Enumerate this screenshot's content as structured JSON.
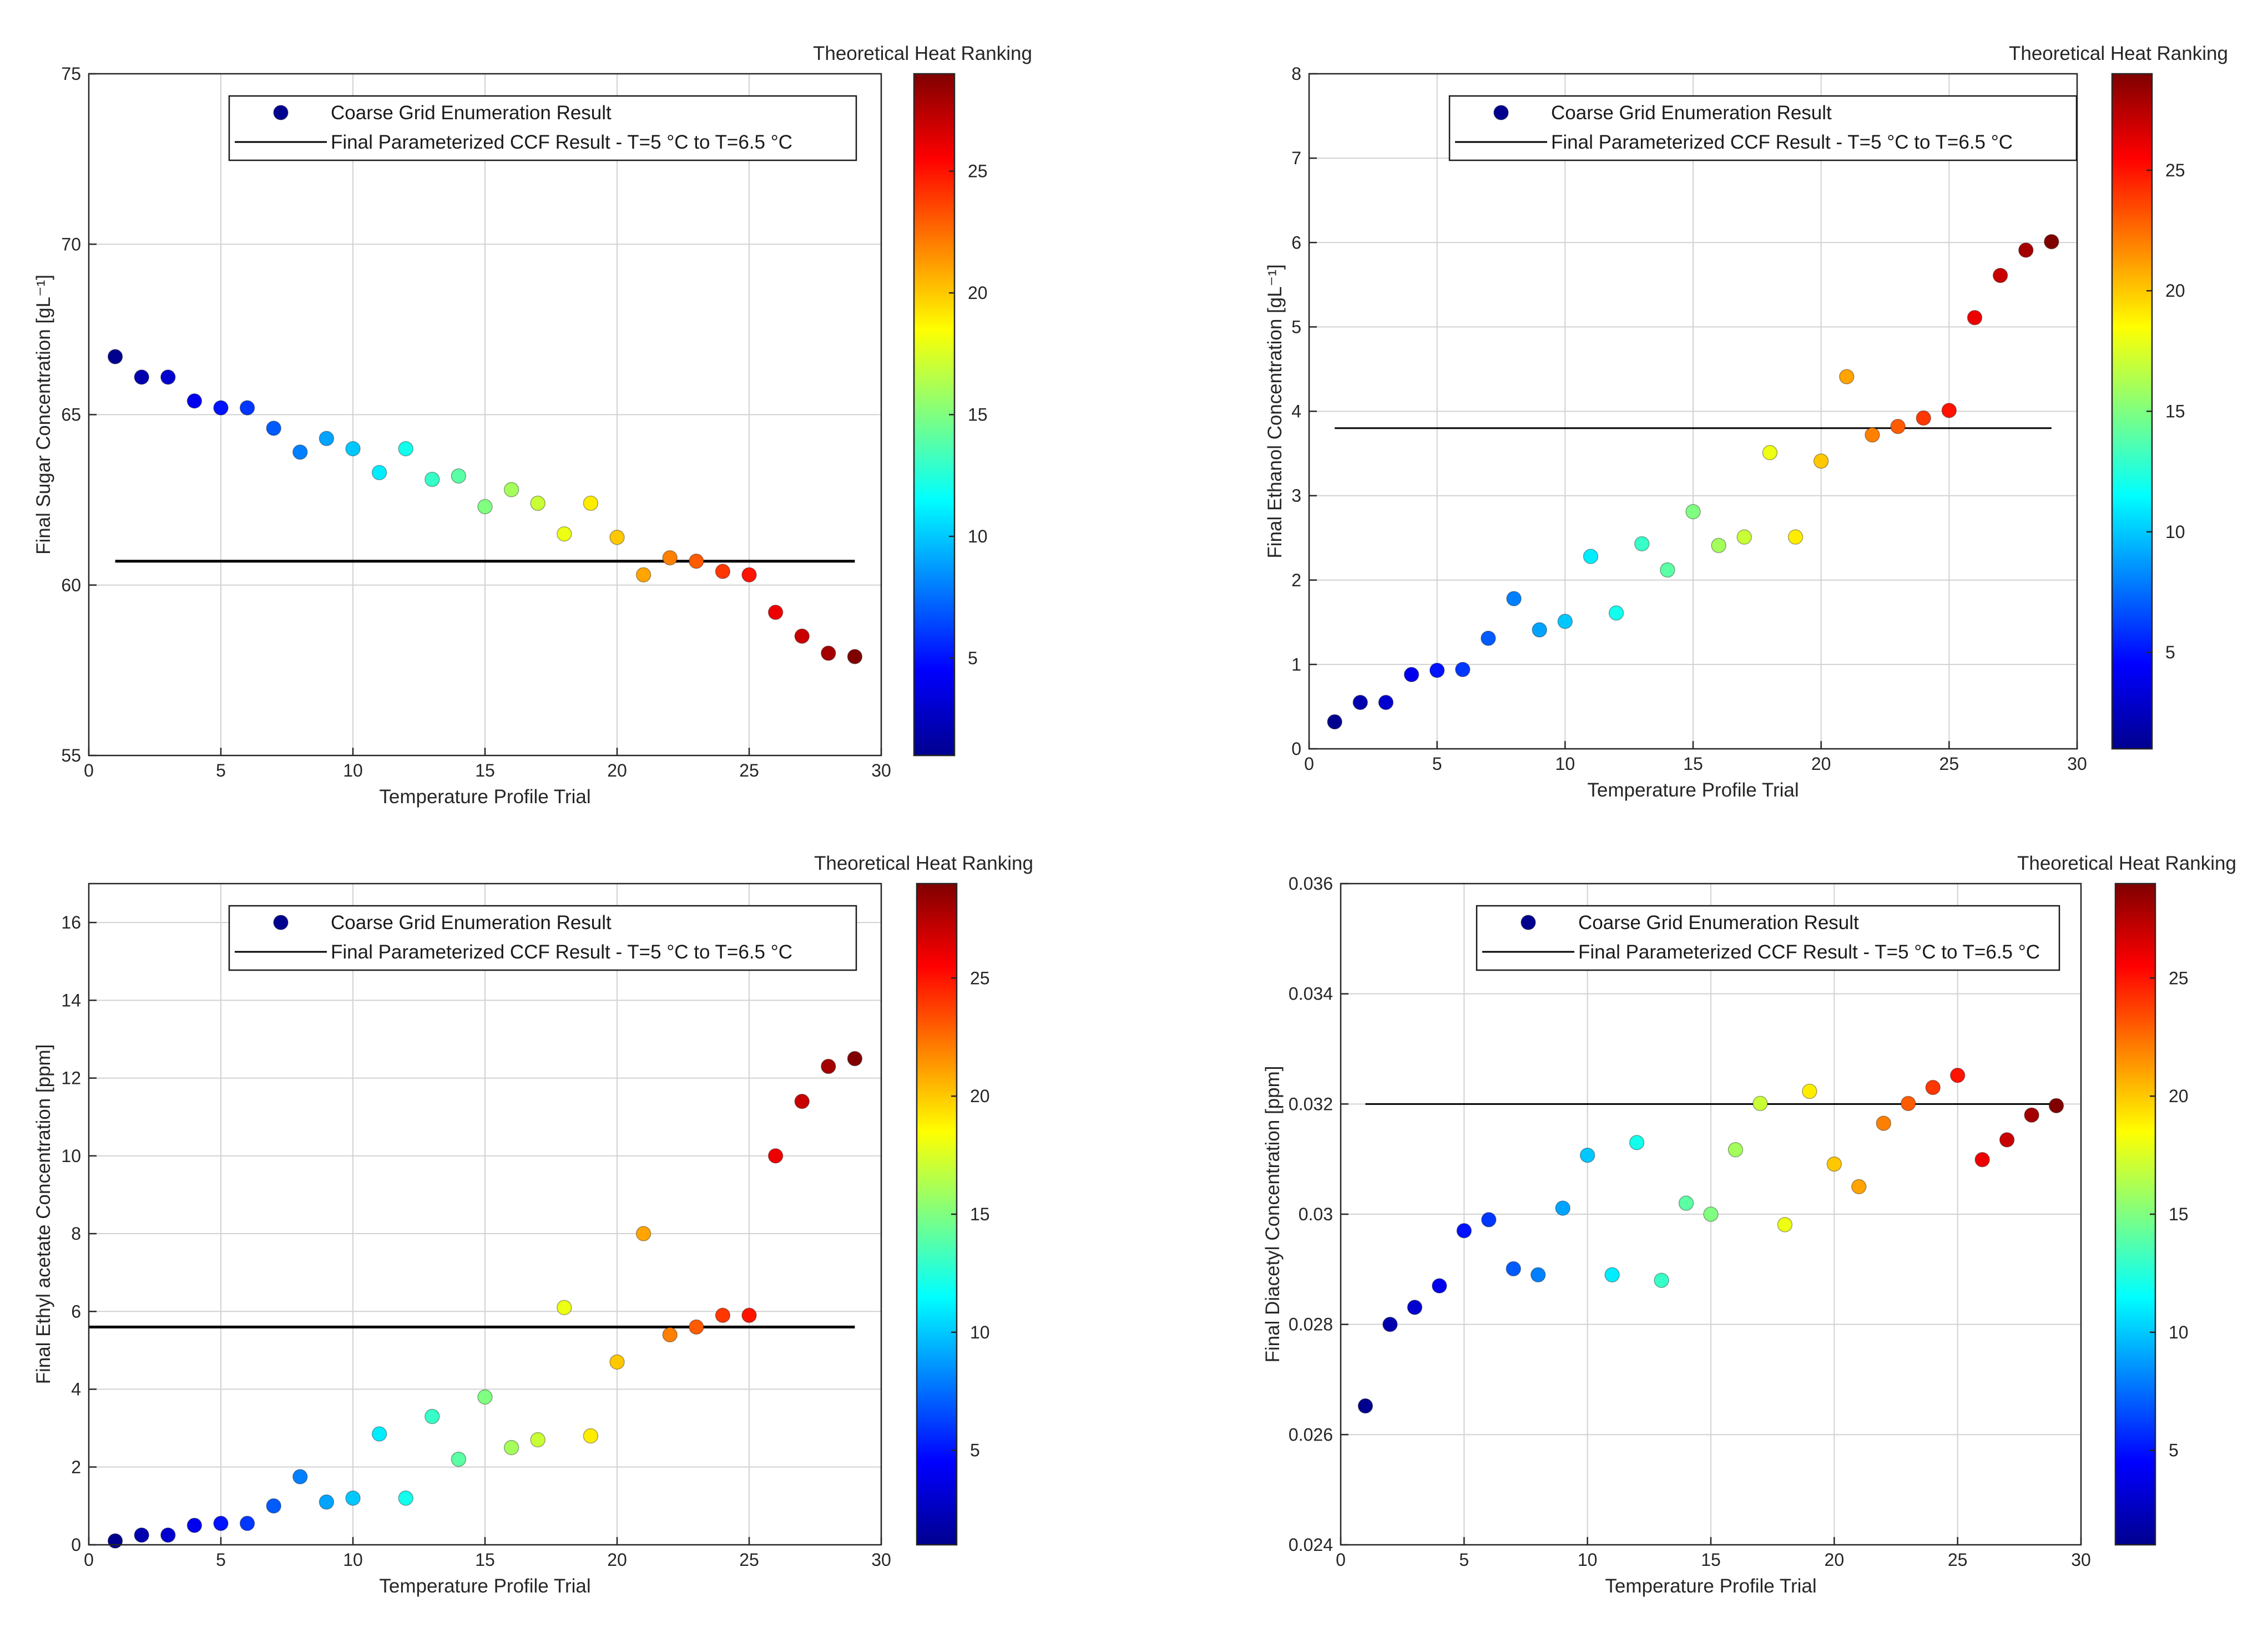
{
  "figure": {
    "colorbar_title": "Theoretical Heat Ranking",
    "colorbar_ticks": [
      5,
      10,
      15,
      20,
      25
    ],
    "colorbar_range": [
      1,
      29
    ],
    "colormap": [
      "#00008f",
      "#0000ff",
      "#00ffff",
      "#ffff00",
      "#ff0000",
      "#800000"
    ]
  },
  "chart_data": [
    {
      "type": "scatter",
      "xlabel": "Temperature Profile Trial",
      "ylabel": "Final Sugar Concentration [gL⁻¹]",
      "xlim": [
        0,
        30
      ],
      "ylim": [
        55,
        75
      ],
      "xticks": [
        0,
        5,
        10,
        15,
        20,
        25,
        30
      ],
      "yticks": [
        55,
        60,
        65,
        70,
        75
      ],
      "grid": true,
      "legend_position": "top",
      "legend": [
        "Coarse Grid Enumeration Result",
        "Final Parameterized CCF Result - T=5 °C to T=6.5 °C"
      ],
      "x": [
        1,
        2,
        3,
        4,
        5,
        6,
        7,
        8,
        9,
        10,
        11,
        12,
        13,
        14,
        15,
        16,
        17,
        18,
        19,
        20,
        21,
        22,
        23,
        24,
        25,
        26,
        27,
        28,
        29
      ],
      "y": [
        66.7,
        66.1,
        66.1,
        65.4,
        65.2,
        65.2,
        64.6,
        63.9,
        64.3,
        64.0,
        63.3,
        64.0,
        63.1,
        63.2,
        62.3,
        62.8,
        62.4,
        61.5,
        62.4,
        61.4,
        60.3,
        60.8,
        60.7,
        60.4,
        60.3,
        59.2,
        58.5,
        58.0,
        57.9
      ],
      "reference_line": {
        "y": 60.7,
        "x_range": [
          1,
          29
        ]
      }
    },
    {
      "type": "scatter",
      "xlabel": "Temperature Profile Trial",
      "ylabel": "Final Ethanol Concentration [gL⁻¹]",
      "xlim": [
        0,
        30
      ],
      "ylim": [
        0,
        8
      ],
      "xticks": [
        0,
        5,
        10,
        15,
        20,
        25,
        30
      ],
      "yticks": [
        0,
        1,
        2,
        3,
        4,
        5,
        6,
        7,
        8
      ],
      "grid": true,
      "legend_position": "top",
      "legend": [
        "Coarse Grid Enumeration Result",
        "Final Parameterized CCF Result - T=5 °C to T=6.5 °C"
      ],
      "x": [
        1,
        2,
        3,
        4,
        5,
        6,
        7,
        8,
        9,
        10,
        11,
        12,
        13,
        14,
        15,
        16,
        17,
        18,
        19,
        20,
        21,
        22,
        23,
        24,
        25,
        26,
        27,
        28,
        29
      ],
      "y": [
        0.32,
        0.55,
        0.55,
        0.88,
        0.93,
        0.94,
        1.31,
        1.78,
        1.41,
        1.51,
        2.28,
        1.61,
        2.43,
        2.12,
        2.81,
        2.41,
        2.51,
        3.51,
        2.51,
        3.41,
        4.41,
        3.72,
        3.82,
        3.92,
        4.01,
        5.11,
        5.61,
        5.91,
        6.01
      ],
      "reference_line": {
        "y": 3.8,
        "x_range": [
          1,
          29
        ]
      }
    },
    {
      "type": "scatter",
      "xlabel": "Temperature Profile Trial",
      "ylabel": "Final Ethyl acetate Concentration [ppm]",
      "xlim": [
        0,
        30
      ],
      "ylim": [
        0,
        17
      ],
      "xticks": [
        0,
        5,
        10,
        15,
        20,
        25,
        30
      ],
      "yticks": [
        0,
        2,
        4,
        6,
        8,
        10,
        12,
        14,
        16
      ],
      "grid": true,
      "legend_position": "top",
      "legend": [
        "Coarse Grid Enumeration Result",
        "Final Parameterized CCF Result - T=5 °C to T=6.5 °C"
      ],
      "x": [
        1,
        2,
        3,
        4,
        5,
        6,
        7,
        8,
        9,
        10,
        11,
        12,
        13,
        14,
        15,
        16,
        17,
        18,
        19,
        20,
        21,
        22,
        23,
        24,
        25,
        26,
        27,
        28,
        29
      ],
      "y": [
        0.1,
        0.25,
        0.25,
        0.5,
        0.55,
        0.55,
        1.0,
        1.75,
        1.1,
        1.2,
        2.85,
        1.2,
        3.3,
        2.2,
        3.8,
        2.5,
        2.7,
        6.1,
        2.8,
        4.7,
        8.0,
        5.4,
        5.6,
        5.9,
        5.9,
        10.0,
        11.4,
        12.3,
        12.5
      ],
      "reference_line": {
        "y": 5.6,
        "x_range": [
          0,
          29
        ]
      }
    },
    {
      "type": "scatter",
      "xlabel": "Temperature Profile Trial",
      "ylabel": "Final Diacetyl Concentration [ppm]",
      "xlim": [
        0,
        30
      ],
      "ylim": [
        0.024,
        0.036
      ],
      "xticks": [
        0,
        5,
        10,
        15,
        20,
        25,
        30
      ],
      "yticks": [
        "0.024",
        "0.026",
        "0.028",
        "0.03",
        "0.032",
        "0.034",
        "0.036"
      ],
      "grid": true,
      "legend_position": "top",
      "legend": [
        "Coarse Grid Enumeration Result",
        "Final Parameterized CCF Result - T=5 °C to T=6.5 °C"
      ],
      "x": [
        1,
        2,
        3,
        4,
        5,
        6,
        7,
        8,
        9,
        10,
        11,
        12,
        13,
        14,
        15,
        16,
        17,
        18,
        19,
        20,
        21,
        22,
        23,
        24,
        25,
        26,
        27,
        28,
        29
      ],
      "y": [
        0.02652,
        0.028,
        0.02831,
        0.0287,
        0.0297,
        0.0299,
        0.02901,
        0.0289,
        0.03011,
        0.03107,
        0.0289,
        0.0313,
        0.0288,
        0.0302,
        0.03,
        0.03117,
        0.03201,
        0.02981,
        0.03223,
        0.03091,
        0.0305,
        0.03165,
        0.03201,
        0.0323,
        0.03252,
        0.03099,
        0.03135,
        0.0318,
        0.03197
      ],
      "reference_line": {
        "y": 0.032,
        "x_range": [
          1,
          29
        ]
      }
    }
  ]
}
